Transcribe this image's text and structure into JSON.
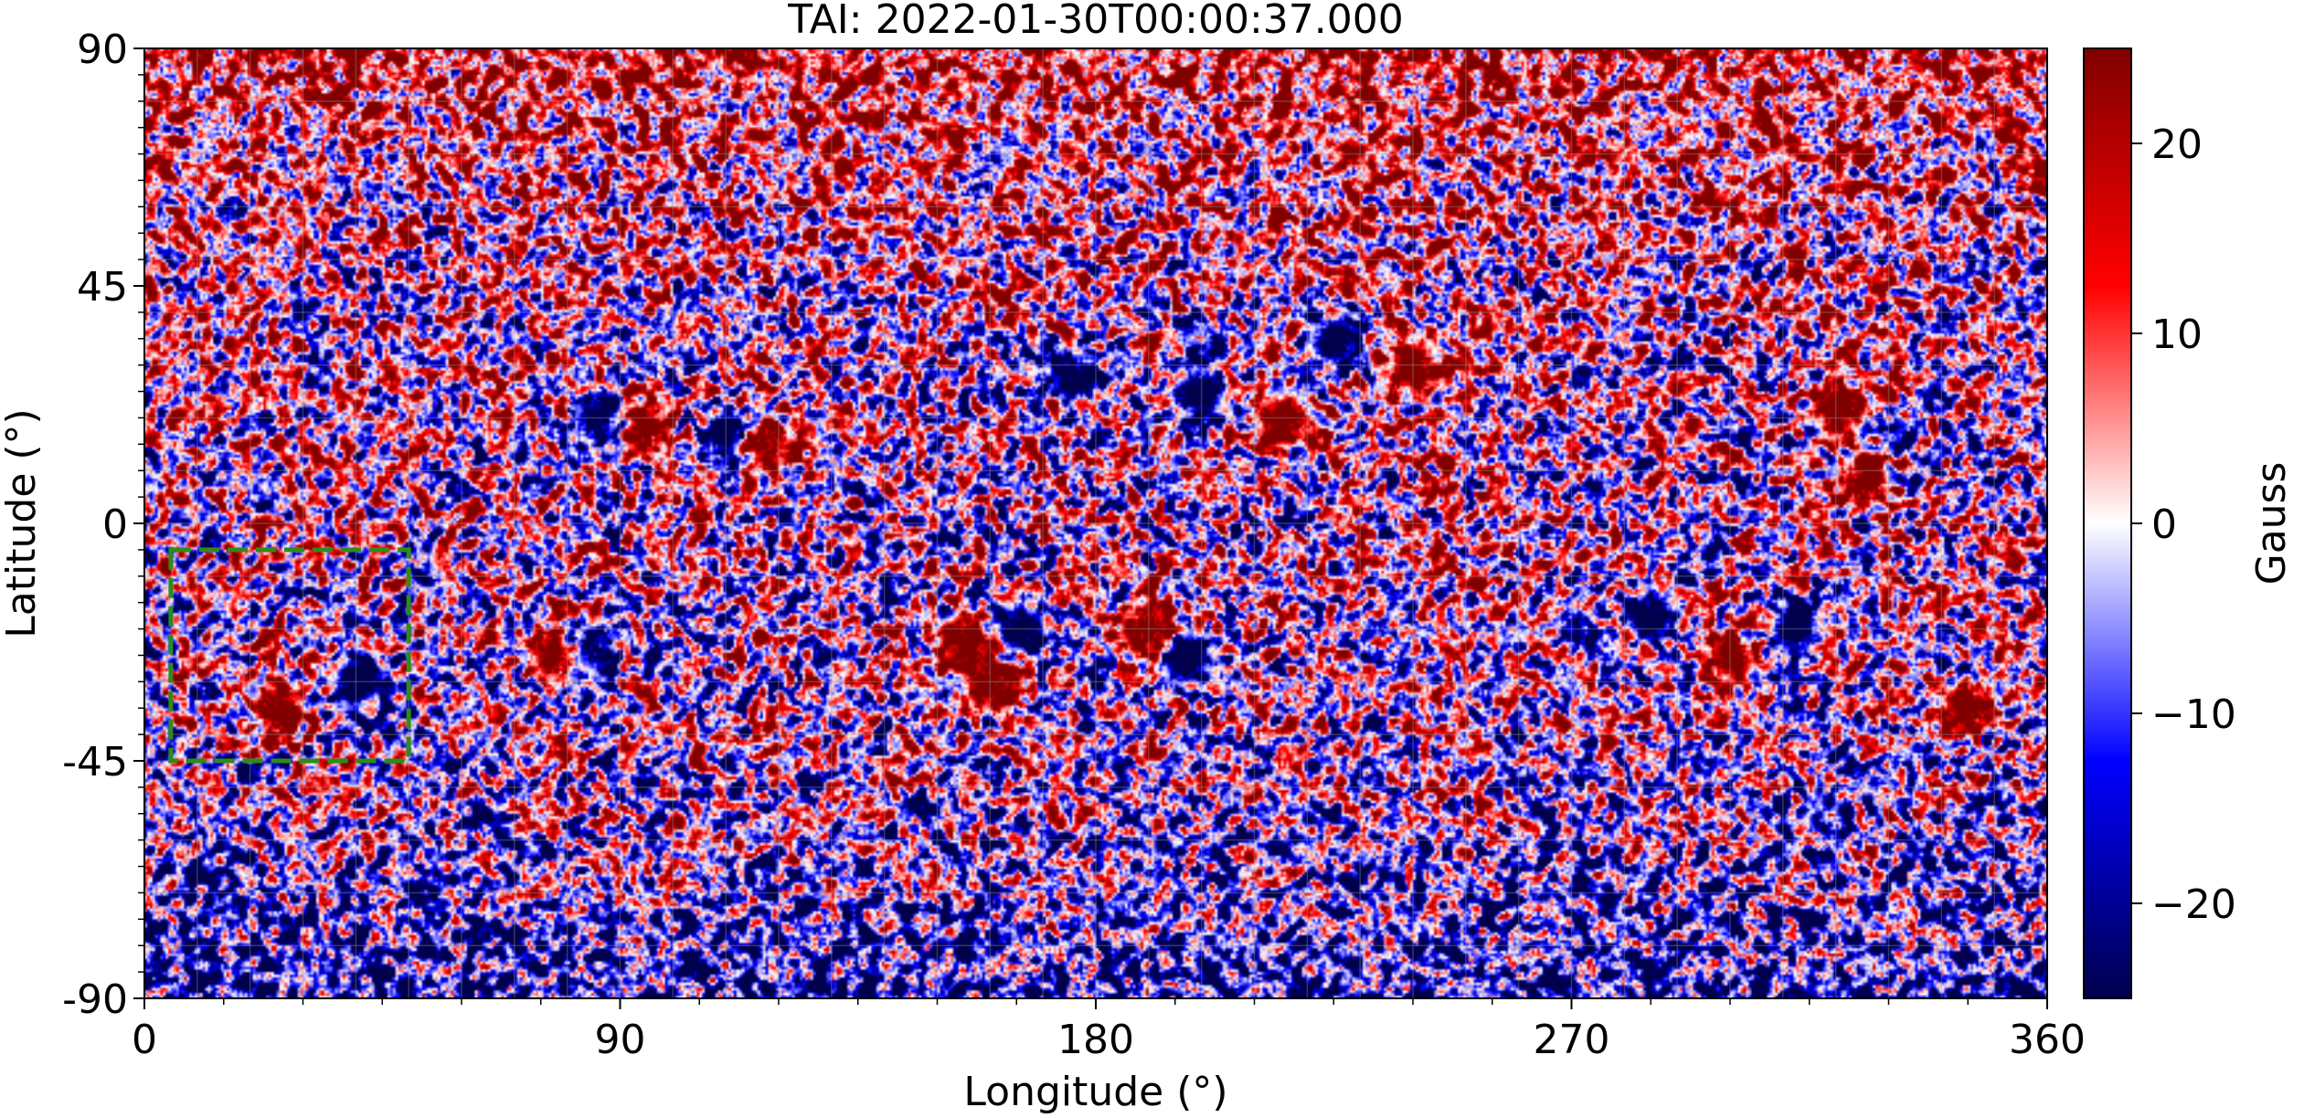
{
  "chart_data": {
    "type": "heatmap",
    "title": "TAI: 2022-01-30T00:00:37.000",
    "xlabel": "Longitude (°)",
    "ylabel": "Latitude (°)",
    "xlim": [
      0,
      360
    ],
    "ylim": [
      -90,
      90
    ],
    "x_ticks": [
      0,
      90,
      180,
      270,
      360
    ],
    "x_tick_labels": [
      "0",
      "90",
      "180",
      "270",
      "360"
    ],
    "y_ticks": [
      90,
      45,
      0,
      -45,
      -90
    ],
    "y_tick_labels": [
      "90",
      "45",
      "0",
      "-45",
      "-90"
    ],
    "grid": true,
    "grid_spacing_deg": 10,
    "colorbar": {
      "label": "Gauss",
      "colormap": "seismic",
      "vmin": -25,
      "vmax": 25,
      "ticks": [
        20,
        10,
        0,
        -10,
        -20
      ],
      "tick_labels": [
        "20",
        "10",
        "0",
        "−10",
        "−20"
      ],
      "colors": [
        "#00004c",
        "#0000ff",
        "#ffffff",
        "#ff0000",
        "#800000"
      ]
    },
    "highlight_region": {
      "lon_range": [
        5,
        50
      ],
      "lat_range": [
        -45,
        -5
      ],
      "style": "dashed",
      "color": "#2e8b1a"
    },
    "active_regions": [
      {
        "lon": 86,
        "lat": 20,
        "polarity": "negative"
      },
      {
        "lon": 94,
        "lat": 18,
        "polarity": "positive"
      },
      {
        "lon": 110,
        "lat": 16,
        "polarity": "negative"
      },
      {
        "lon": 117,
        "lat": 15,
        "polarity": "positive"
      },
      {
        "lon": 176,
        "lat": 28,
        "polarity": "negative"
      },
      {
        "lon": 200,
        "lat": 25,
        "polarity": "negative"
      },
      {
        "lon": 216,
        "lat": 20,
        "polarity": "positive"
      },
      {
        "lon": 225,
        "lat": 35,
        "polarity": "negative"
      },
      {
        "lon": 240,
        "lat": 30,
        "polarity": "positive"
      },
      {
        "lon": 320,
        "lat": 22,
        "polarity": "positive"
      },
      {
        "lon": 325,
        "lat": 8,
        "polarity": "positive"
      },
      {
        "lon": 40,
        "lat": -30,
        "polarity": "negative"
      },
      {
        "lon": 25,
        "lat": -35,
        "polarity": "positive"
      },
      {
        "lon": 78,
        "lat": -25,
        "polarity": "positive"
      },
      {
        "lon": 84,
        "lat": -24,
        "polarity": "negative"
      },
      {
        "lon": 155,
        "lat": -22,
        "polarity": "positive"
      },
      {
        "lon": 165,
        "lat": -20,
        "polarity": "negative"
      },
      {
        "lon": 160,
        "lat": -30,
        "polarity": "positive"
      },
      {
        "lon": 190,
        "lat": -20,
        "polarity": "positive"
      },
      {
        "lon": 197,
        "lat": -25,
        "polarity": "negative"
      },
      {
        "lon": 285,
        "lat": -17,
        "polarity": "negative"
      },
      {
        "lon": 300,
        "lat": -25,
        "polarity": "positive"
      },
      {
        "lon": 312,
        "lat": -20,
        "polarity": "negative"
      },
      {
        "lon": 345,
        "lat": -35,
        "polarity": "positive"
      }
    ]
  }
}
